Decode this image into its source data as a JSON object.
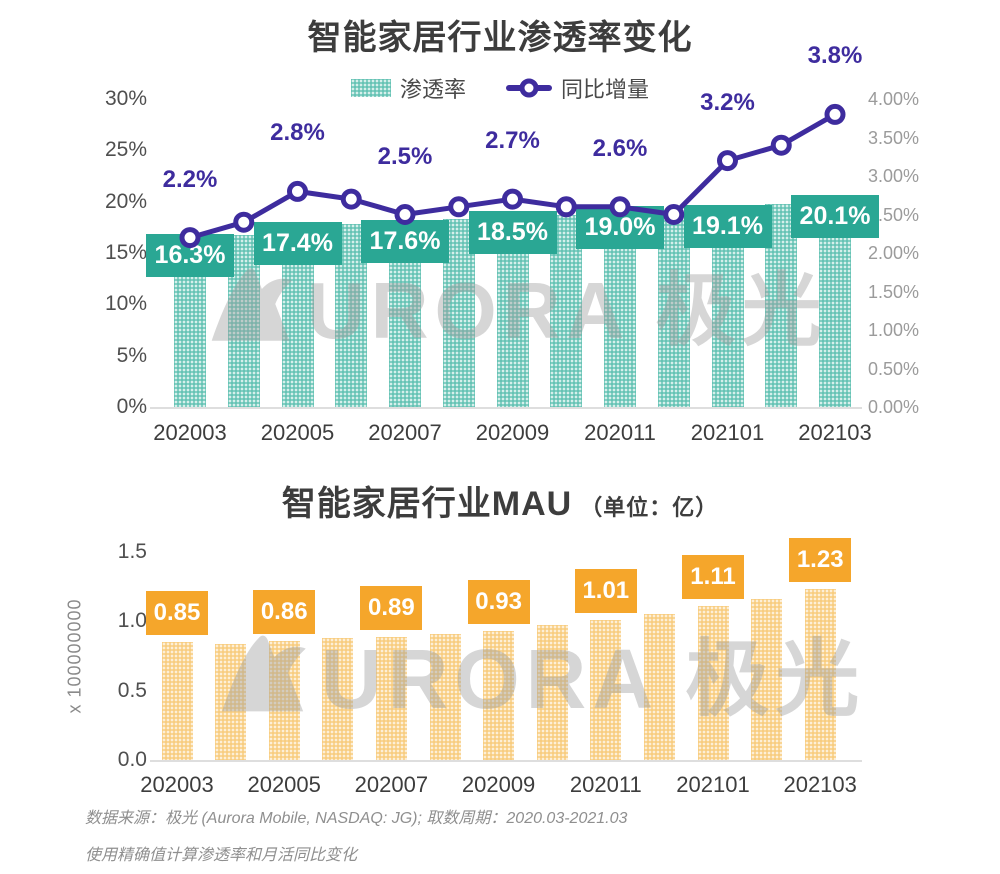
{
  "colors": {
    "teal_box": "#2aa794",
    "teal_bar": "#66c3b5",
    "purple_line": "#3e2c9e",
    "orange_box": "#f5a62b",
    "orange_bar": "#f8cd80",
    "title_text": "#3d3d3d",
    "axis_text": "#4f4f4f",
    "axis_text_light": "#9b9b9b",
    "footer_text": "#8f8f8f"
  },
  "watermark": {
    "text": "URORA 极光"
  },
  "chart_data": [
    {
      "type": "bar",
      "subtype": "combo-bar-line",
      "title": "智能家居行业渗透率变化",
      "legend": [
        {
          "label": "渗透率",
          "marker": "bar"
        },
        {
          "label": "同比增量",
          "marker": "line"
        }
      ],
      "legend_position": "top-center",
      "grid": false,
      "categories": [
        "202003",
        "202004",
        "202005",
        "202006",
        "202007",
        "202008",
        "202009",
        "202010",
        "202011",
        "202012",
        "202101",
        "202102",
        "202103"
      ],
      "x_tick_labels": [
        "202003",
        "202005",
        "202007",
        "202009",
        "202011",
        "202101",
        "202103"
      ],
      "bar_series": {
        "name": "渗透率",
        "axis": "left",
        "values": [
          16.3,
          16.8,
          17.4,
          17.8,
          17.6,
          18.3,
          18.5,
          18.7,
          19.0,
          18.9,
          19.1,
          19.8,
          20.1
        ],
        "data_labels": [
          "16.3%",
          null,
          "17.4%",
          null,
          "17.6%",
          null,
          "18.5%",
          null,
          "19.0%",
          null,
          "19.1%",
          null,
          "20.1%"
        ]
      },
      "line_series": {
        "name": "同比增量",
        "axis": "right",
        "values": [
          2.2,
          2.4,
          2.8,
          2.7,
          2.5,
          2.6,
          2.7,
          2.6,
          2.6,
          2.5,
          3.2,
          3.4,
          3.8
        ],
        "data_labels": [
          "2.2%",
          null,
          "2.8%",
          null,
          "2.5%",
          null,
          "2.7%",
          null,
          "2.6%",
          null,
          "3.2%",
          null,
          "3.8%"
        ]
      },
      "left_axis": {
        "min": 0,
        "max": 30,
        "tick_labels": [
          "30%",
          "25%",
          "20%",
          "15%",
          "10%",
          "5%",
          "0%"
        ]
      },
      "right_axis": {
        "min": 0,
        "max": 4,
        "tick_labels": [
          "4.00%",
          "3.50%",
          "3.00%",
          "2.50%",
          "2.00%",
          "1.50%",
          "1.00%",
          "0.50%",
          "0.00%"
        ]
      }
    },
    {
      "type": "bar",
      "title": "智能家居行业MAU",
      "title_suffix": "（单位：亿）",
      "ylabel": "x 100000000",
      "grid": false,
      "categories": [
        "202003",
        "202004",
        "202005",
        "202006",
        "202007",
        "202008",
        "202009",
        "202010",
        "202011",
        "202012",
        "202101",
        "202102",
        "202103"
      ],
      "x_tick_labels": [
        "202003",
        "202005",
        "202007",
        "202009",
        "202011",
        "202101",
        "202103"
      ],
      "bar_series": {
        "name": "MAU",
        "axis": "left",
        "values": [
          0.85,
          0.84,
          0.86,
          0.88,
          0.89,
          0.91,
          0.93,
          0.97,
          1.01,
          1.05,
          1.11,
          1.16,
          1.23
        ],
        "data_labels": [
          "0.85",
          null,
          "0.86",
          null,
          "0.89",
          null,
          "0.93",
          null,
          "1.01",
          null,
          "1.11",
          null,
          "1.23"
        ]
      },
      "left_axis": {
        "min": 0,
        "max": 1.5,
        "tick_labels": [
          "1.5",
          "1.0",
          "0.5",
          "0.0"
        ]
      }
    }
  ],
  "footer": {
    "line1": "数据来源：极光 (Aurora Mobile, NASDAQ: JG); 取数周期：2020.03-2021.03",
    "line2": "使用精确值计算渗透率和月活同比变化"
  }
}
